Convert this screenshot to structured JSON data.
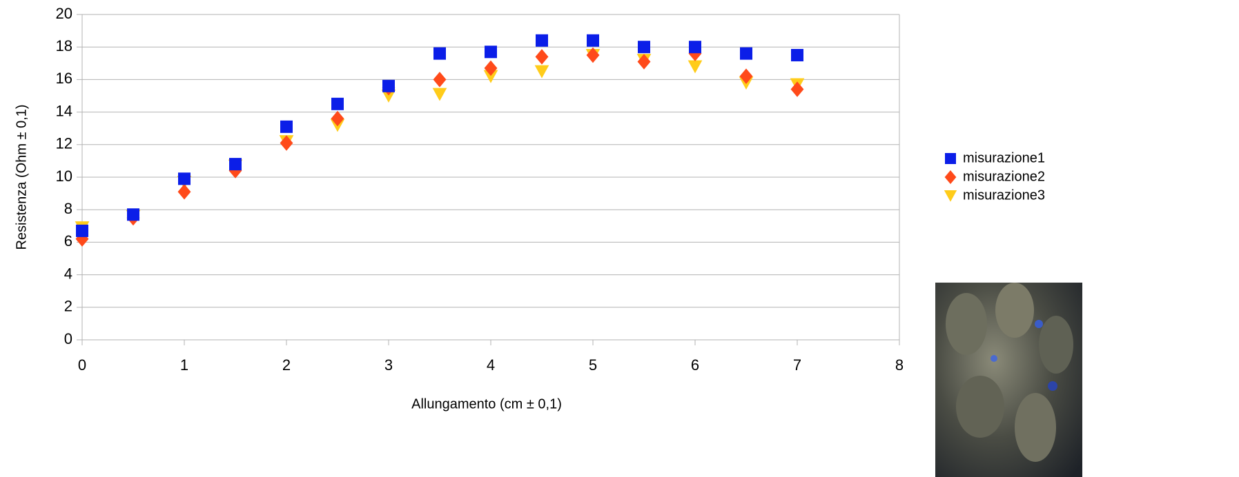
{
  "chart_data": {
    "type": "scatter",
    "x_label": "Allungamento (cm ± 0,1)",
    "y_label": "Resistenza (Ohm ± 0,1)",
    "x": [
      0,
      0.5,
      1,
      1.5,
      2,
      2.5,
      3,
      3.5,
      4,
      4.5,
      5,
      5.5,
      6,
      6.5,
      7
    ],
    "series": [
      {
        "name": "misurazione1",
        "color": "#0b1ee8",
        "marker": "square",
        "values": [
          6.7,
          7.7,
          9.9,
          10.8,
          13.1,
          14.5,
          15.6,
          17.6,
          17.7,
          18.4,
          18.4,
          18.0,
          18.0,
          17.6,
          17.5
        ]
      },
      {
        "name": "misurazione2",
        "color": "#ff4a1a",
        "marker": "diamond",
        "values": [
          6.2,
          7.5,
          9.1,
          10.4,
          12.1,
          13.6,
          15.5,
          16.0,
          16.7,
          17.4,
          17.5,
          17.1,
          17.6,
          16.2,
          15.4
        ]
      },
      {
        "name": "misurazione3",
        "color": "#ffcc1a",
        "marker": "triangle-down",
        "values": [
          6.9,
          7.6,
          9.7,
          10.7,
          12.2,
          13.2,
          15.0,
          15.1,
          16.2,
          16.5,
          17.5,
          17.2,
          16.8,
          15.8,
          15.7
        ]
      }
    ],
    "xlim": [
      0,
      8
    ],
    "xticks": [
      0,
      1,
      2,
      3,
      4,
      5,
      6,
      7,
      8
    ],
    "ylim": [
      0,
      20
    ],
    "yticks": [
      0,
      2,
      4,
      6,
      8,
      10,
      12,
      14,
      16,
      18,
      20
    ],
    "grid": true,
    "legend": "right"
  }
}
